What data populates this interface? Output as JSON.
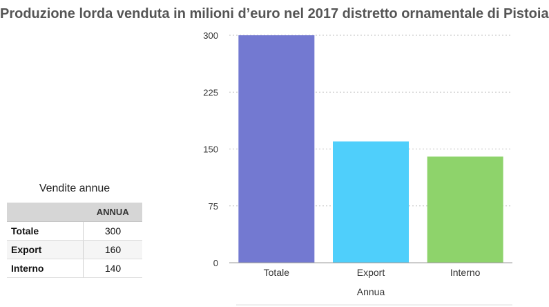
{
  "chart_data": {
    "type": "bar",
    "title": "Produzione lorda venduta in milioni d’euro nel 2017 distretto ornamentale di Pistoia",
    "categories": [
      "Totale",
      "Export",
      "Interno"
    ],
    "series": [
      {
        "values": [
          300,
          160,
          140
        ]
      }
    ],
    "bar_colors": [
      "#7379d1",
      "#4fcffb",
      "#8ed36b"
    ],
    "xlabel": "Annua",
    "ylabel": "",
    "ylim": [
      0,
      300
    ],
    "yticks": [
      0,
      75,
      150,
      225,
      300
    ],
    "grid": true
  },
  "table": {
    "caption": "Vendite  annue",
    "header": [
      "",
      "ANNUA"
    ],
    "rows": [
      {
        "label": "Totale",
        "value": "300"
      },
      {
        "label": "Export",
        "value": "160"
      },
      {
        "label": "Interno",
        "value": "140"
      }
    ]
  }
}
